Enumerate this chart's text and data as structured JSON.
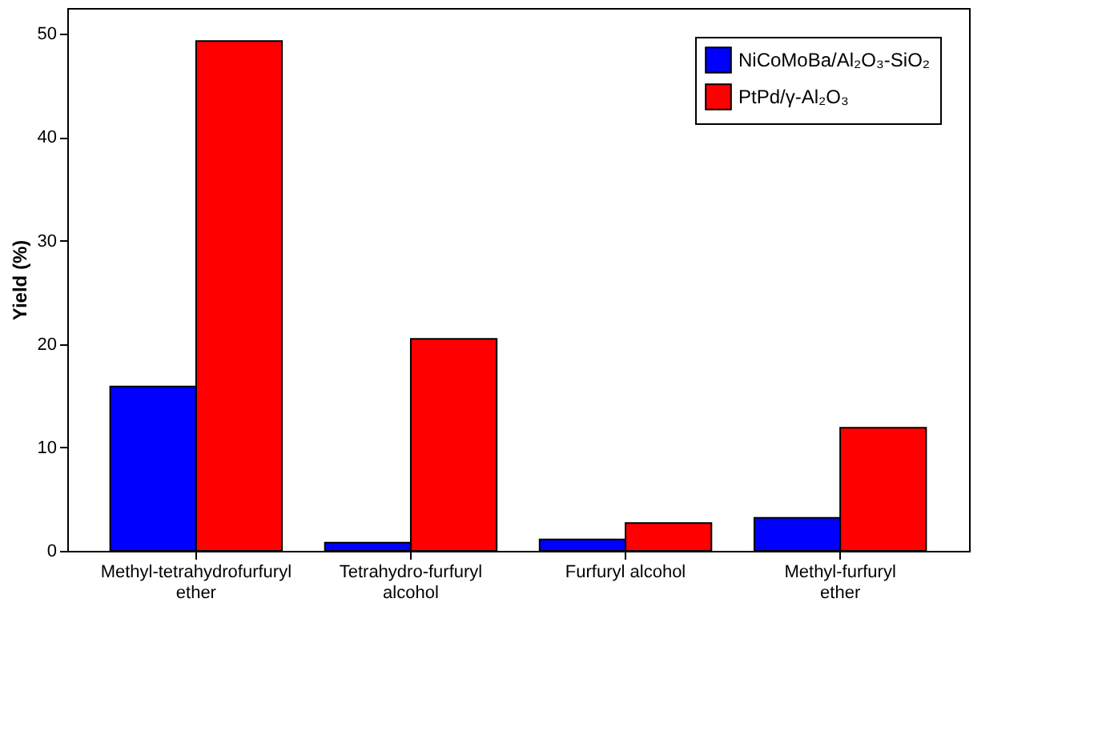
{
  "chart_data": {
    "type": "bar",
    "ylabel": "Yield (%)",
    "categories": [
      "Methyl-tetrahydrofurfuryl ether",
      "Tetrahydro-furfuryl alcohol",
      "Furfuryl alcohol",
      "Methyl-furfuryl ether"
    ],
    "series": [
      {
        "name": "NiCoMoBa/Al₂O₃-SiO₂",
        "color": "#0000ff",
        "values": [
          15.9,
          0.8,
          1.1,
          3.2
        ]
      },
      {
        "name": "PtPd/γ-Al₂O₃",
        "color": "#ff0000",
        "values": [
          49.3,
          20.5,
          2.7,
          11.9
        ]
      }
    ],
    "ylim": [
      0,
      52.5
    ],
    "yticks": [
      0,
      10,
      20,
      30,
      40,
      50
    ],
    "grid": false,
    "legend": "top right"
  }
}
